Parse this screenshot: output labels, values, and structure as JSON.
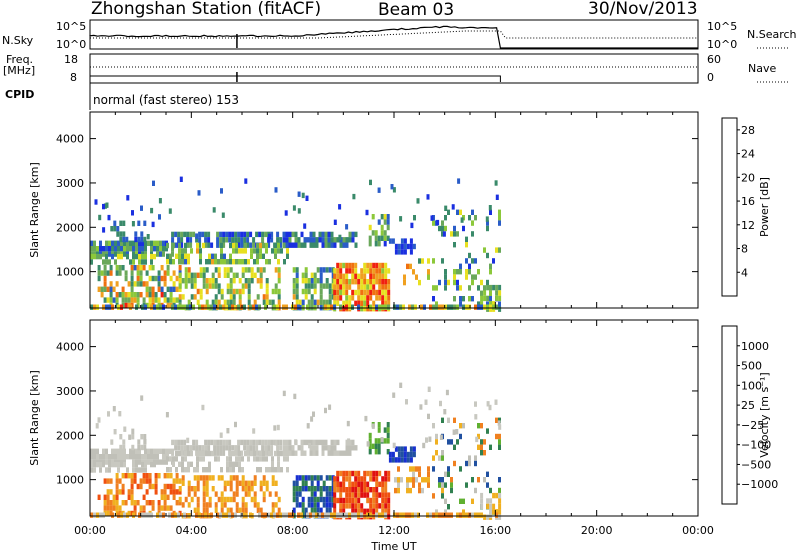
{
  "header": {
    "station": "Zhongshan Station (fitACF)",
    "beam": "Beam 03",
    "date": "30/Nov/2013"
  },
  "summary": {
    "nsky_label": "N.Sky",
    "nsky_ticks": [
      "10^5",
      "10^0"
    ],
    "nsearch_label": "N.Search",
    "nsearch_ticks": [
      "10^5",
      "10^0"
    ],
    "freq_label": "Freq.",
    "freq_unit": "[MHz]",
    "freq_ticks": [
      "18",
      "8"
    ],
    "nave_label": "Nave",
    "nave_ticks": [
      "60",
      "0"
    ],
    "cpid_label": "CPID",
    "cpid_text": "normal (fast stereo) 153"
  },
  "colors": {
    "power": [
      "#1a2fe0",
      "#2a5cc8",
      "#3a8a6a",
      "#6aa85a",
      "#8cc83a",
      "#e8e020",
      "#f0a020",
      "#f07010",
      "#f02010"
    ],
    "velocity": [
      "#e01010",
      "#f05010",
      "#f08020",
      "#f0b020",
      "#c8c8c0",
      "#c0c0b8",
      "#60b030",
      "#308050",
      "#2050a0",
      "#1830d0"
    ]
  },
  "chart_data": [
    {
      "type": "heatmap",
      "xlabel": "",
      "ylabel": "Slant Range [km]",
      "x_ticks": [
        "00:00",
        "04:00",
        "08:00",
        "12:00",
        "16:00",
        "20:00",
        "00:00"
      ],
      "y_ticks": [
        1000,
        2000,
        3000,
        4000
      ],
      "xlim": [
        0,
        24
      ],
      "ylim": [
        180,
        4600
      ],
      "colorbar": {
        "label": "Power [dB]",
        "ticks": [
          4,
          8,
          12,
          16,
          20,
          24,
          28
        ],
        "range": [
          0,
          30
        ]
      },
      "data_extent_hours": [
        0,
        16.2
      ]
    },
    {
      "type": "heatmap",
      "xlabel": "Time UT",
      "ylabel": "Slant Range [km]",
      "x_ticks": [
        "00:00",
        "04:00",
        "08:00",
        "12:00",
        "16:00",
        "20:00",
        "00:00"
      ],
      "y_ticks": [
        1000,
        2000,
        3000,
        4000
      ],
      "xlim": [
        0,
        24
      ],
      "ylim": [
        180,
        4600
      ],
      "colorbar": {
        "label": "Velocity [m s⁻¹]",
        "ticks": [
          "1000",
          "500",
          "100",
          "25",
          "−25",
          "−100",
          "−500",
          "−1000"
        ]
      },
      "data_extent_hours": [
        0,
        16.2
      ]
    }
  ]
}
